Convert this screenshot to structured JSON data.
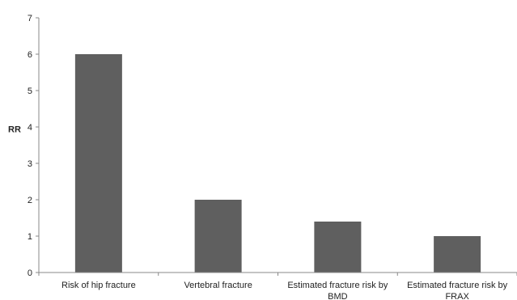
{
  "chart_data": {
    "type": "bar",
    "categories": [
      [
        "Risk of hip fracture"
      ],
      [
        "Vertebral fracture"
      ],
      [
        "Estimated fracture risk by",
        "BMD"
      ],
      [
        "Estimated fracture risk by",
        "FRAX"
      ]
    ],
    "values": [
      6,
      2,
      1.4,
      1
    ],
    "ylabel": "RR",
    "xlabel": "",
    "title": "",
    "ylim": [
      0,
      7
    ],
    "yticks": [
      0,
      1,
      2,
      3,
      4,
      5,
      6,
      7
    ],
    "bar_color": "#5f5f5f",
    "axis_color": "#888888",
    "grid": false,
    "legend": "none"
  }
}
